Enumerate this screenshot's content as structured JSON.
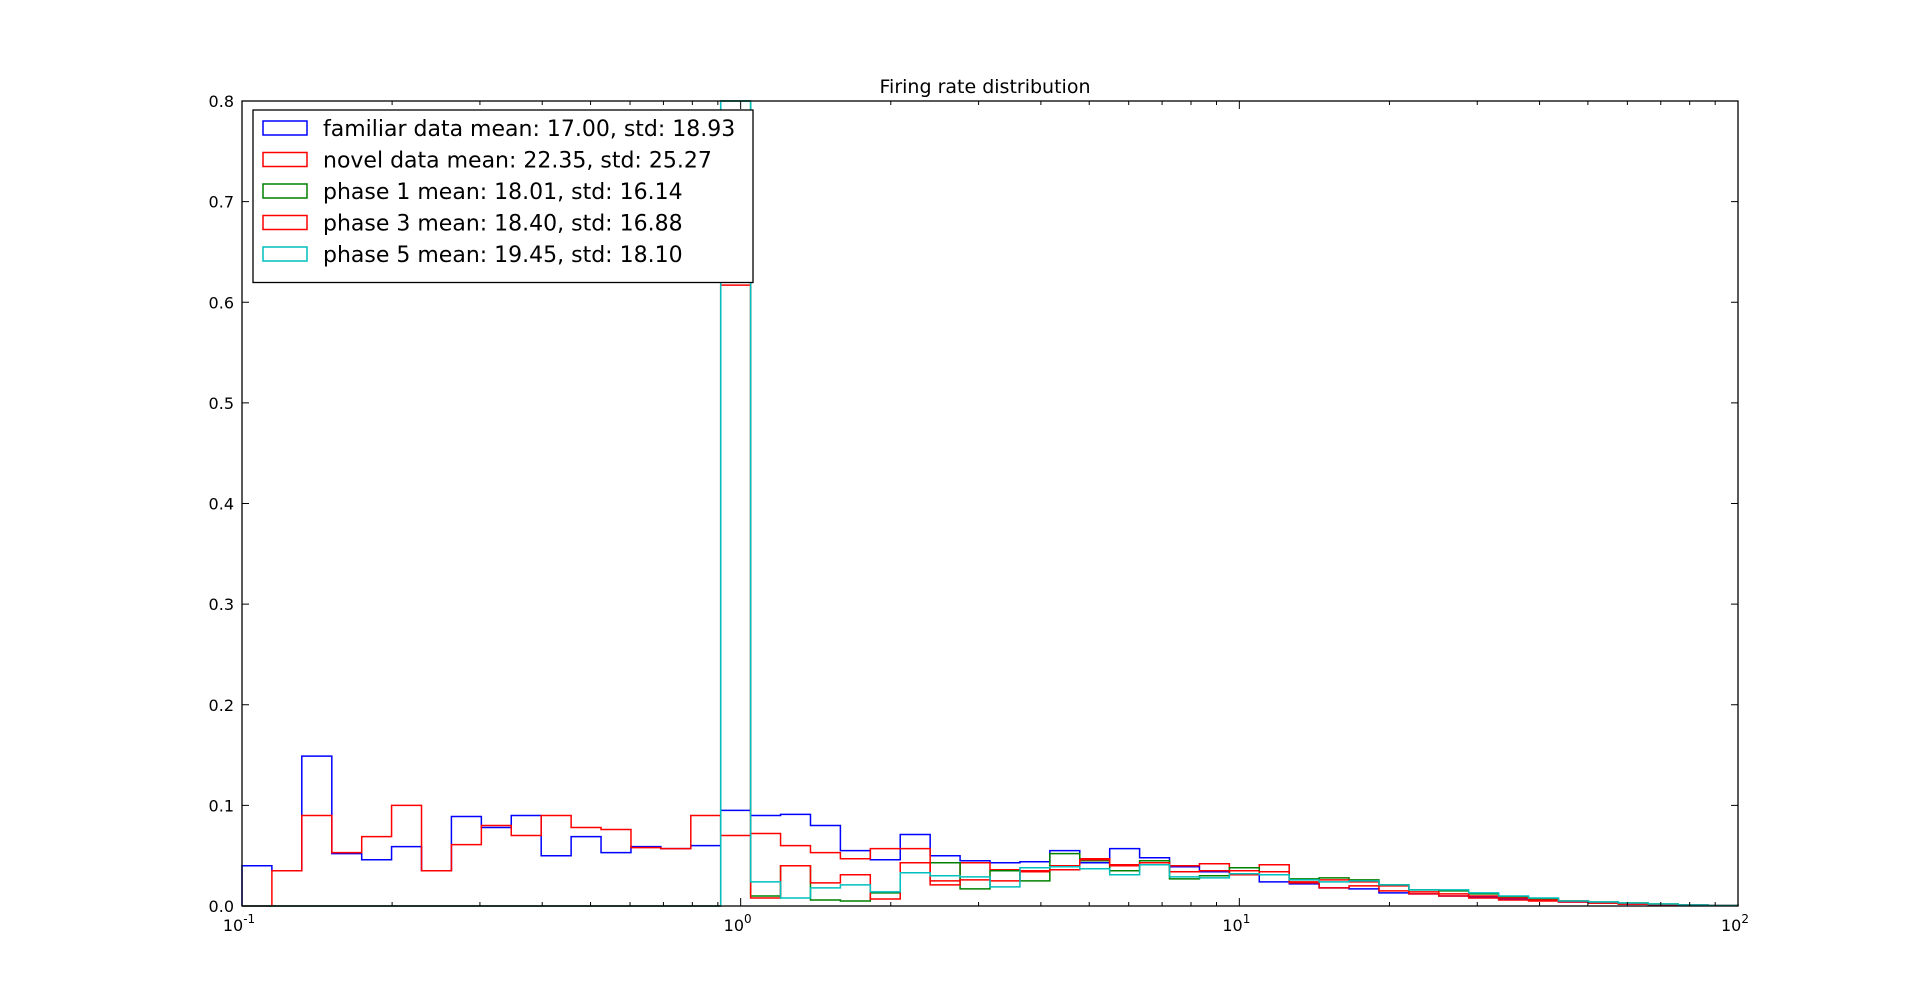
{
  "chart_data": {
    "type": "histogram",
    "title": "Firing rate distribution",
    "xlabel": "",
    "ylabel": "",
    "xscale": "log",
    "xlim": [
      0.1,
      100
    ],
    "ylim": [
      0,
      0.8
    ],
    "x_ticks": [
      {
        "base": "10",
        "exp": "-1",
        "value": 0.1
      },
      {
        "base": "10",
        "exp": "0",
        "value": 1
      },
      {
        "base": "10",
        "exp": "1",
        "value": 10
      },
      {
        "base": "10",
        "exp": "2",
        "value": 100
      }
    ],
    "y_ticks": [
      "0.0",
      "0.1",
      "0.2",
      "0.3",
      "0.4",
      "0.5",
      "0.6",
      "0.7",
      "0.8"
    ],
    "grid": false,
    "legend_position": "upper-left",
    "bin_edges": [
      0.1,
      0.1148,
      0.1318,
      0.1514,
      0.1738,
      0.1995,
      0.2291,
      0.263,
      0.302,
      0.3467,
      0.3981,
      0.4571,
      0.5248,
      0.6026,
      0.6918,
      0.7943,
      0.912,
      1.0471,
      1.2023,
      1.3804,
      1.5849,
      1.8197,
      2.0893,
      2.3988,
      2.7542,
      3.1623,
      3.6308,
      4.1687,
      4.7863,
      5.4954,
      6.3096,
      7.2444,
      8.3176,
      9.5499,
      10.965,
      12.589,
      14.454,
      16.596,
      19.055,
      21.878,
      25.119,
      28.84,
      33.113,
      38.019,
      43.652,
      50.119,
      57.544,
      66.069,
      75.858,
      87.096,
      100.0
    ],
    "series": [
      {
        "name": "familiar data mean: 17.00, std: 18.93",
        "color": "#0000ff",
        "values": [
          0.04,
          0.035,
          0.149,
          0.052,
          0.046,
          0.059,
          0.035,
          0.089,
          0.078,
          0.09,
          0.05,
          0.069,
          0.053,
          0.059,
          0.057,
          0.06,
          0.095,
          0.09,
          0.091,
          0.08,
          0.055,
          0.046,
          0.071,
          0.05,
          0.045,
          0.043,
          0.044,
          0.055,
          0.043,
          0.057,
          0.048,
          0.039,
          0.034,
          0.031,
          0.024,
          0.022,
          0.018,
          0.017,
          0.013,
          0.012,
          0.01,
          0.009,
          0.007,
          0.006,
          0.004,
          0.003,
          0.002,
          0.0015,
          0.001,
          0.0005
        ]
      },
      {
        "name": "novel data mean: 22.35, std: 25.27",
        "color": "#ff0000",
        "values": [
          0.0,
          0.035,
          0.09,
          0.053,
          0.069,
          0.1,
          0.035,
          0.061,
          0.08,
          0.07,
          0.09,
          0.078,
          0.076,
          0.058,
          0.057,
          0.09,
          0.07,
          0.072,
          0.06,
          0.053,
          0.047,
          0.057,
          0.057,
          0.025,
          0.043,
          0.036,
          0.034,
          0.04,
          0.047,
          0.041,
          0.041,
          0.04,
          0.042,
          0.035,
          0.041,
          0.024,
          0.018,
          0.02,
          0.015,
          0.012,
          0.01,
          0.008,
          0.006,
          0.005,
          0.004,
          0.003,
          0.002,
          0.0015,
          0.001,
          0.0005
        ]
      },
      {
        "name": "phase 1 mean: 18.01, std: 16.14",
        "color": "#008000",
        "values": [
          0,
          0,
          0,
          0,
          0,
          0,
          0,
          0,
          0,
          0,
          0,
          0,
          0,
          0,
          0,
          0,
          0.8,
          0.01,
          0.04,
          0.006,
          0.005,
          0.013,
          0.043,
          0.043,
          0.017,
          0.035,
          0.025,
          0.052,
          0.045,
          0.035,
          0.045,
          0.027,
          0.03,
          0.038,
          0.034,
          0.027,
          0.028,
          0.026,
          0.021,
          0.016,
          0.015,
          0.012,
          0.009,
          0.007,
          0.005,
          0.004,
          0.003,
          0.002,
          0.001,
          0.0005
        ]
      },
      {
        "name": "phase 3 mean: 18.40, std: 16.88",
        "color": "#ff0000",
        "values": [
          0,
          0,
          0,
          0,
          0,
          0,
          0,
          0,
          0,
          0,
          0,
          0,
          0,
          0,
          0,
          0,
          0.617,
          0.008,
          0.04,
          0.023,
          0.031,
          0.007,
          0.043,
          0.021,
          0.026,
          0.025,
          0.035,
          0.036,
          0.046,
          0.04,
          0.043,
          0.034,
          0.035,
          0.031,
          0.034,
          0.023,
          0.026,
          0.024,
          0.02,
          0.014,
          0.012,
          0.01,
          0.008,
          0.006,
          0.005,
          0.003,
          0.002,
          0.0015,
          0.001,
          0.0005
        ]
      },
      {
        "name": "phase 5 mean: 19.45, std: 18.10",
        "color": "#00bfbf",
        "values": [
          0,
          0,
          0,
          0,
          0,
          0,
          0,
          0,
          0,
          0,
          0,
          0,
          0,
          0,
          0,
          0,
          0.8,
          0.024,
          0.008,
          0.018,
          0.021,
          0.014,
          0.033,
          0.03,
          0.029,
          0.019,
          0.038,
          0.039,
          0.037,
          0.031,
          0.041,
          0.029,
          0.028,
          0.032,
          0.031,
          0.026,
          0.024,
          0.025,
          0.021,
          0.016,
          0.016,
          0.013,
          0.01,
          0.008,
          0.005,
          0.004,
          0.003,
          0.002,
          0.001,
          0.0005
        ]
      }
    ]
  }
}
